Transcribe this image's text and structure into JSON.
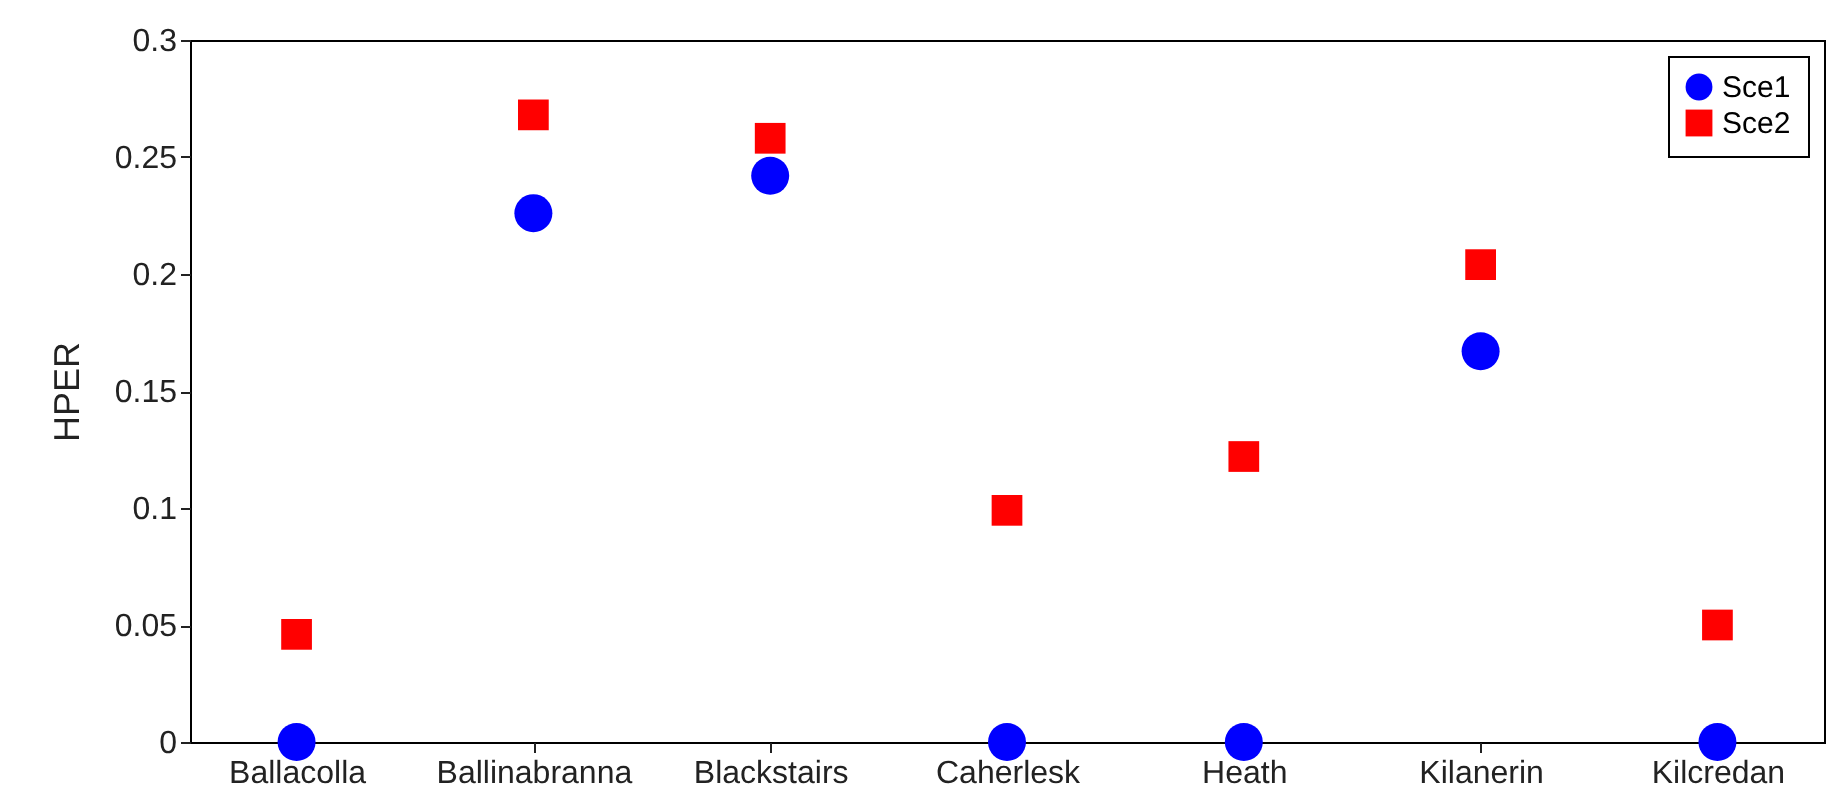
{
  "chart_data": {
    "type": "scatter",
    "ylabel": "HPER",
    "categories": [
      "Ballacolla",
      "Ballinabranna",
      "Blackstairs",
      "Caherlesk",
      "Heath",
      "Kilanerin",
      "Kilcredan"
    ],
    "series": [
      {
        "name": "Sce1",
        "color": "#0000ff",
        "marker": "circle",
        "values": [
          0,
          0.226,
          0.242,
          0,
          0,
          0.167,
          0
        ]
      },
      {
        "name": "Sce2",
        "color": "#ff0000",
        "marker": "square",
        "values": [
          0.046,
          0.268,
          0.258,
          0.099,
          0.122,
          0.204,
          0.05
        ]
      }
    ],
    "ylim": [
      0,
      0.3
    ],
    "yticks": [
      0,
      0.05,
      0.1,
      0.15,
      0.2,
      0.25,
      0.3
    ],
    "grid": false,
    "legend": "top right"
  }
}
